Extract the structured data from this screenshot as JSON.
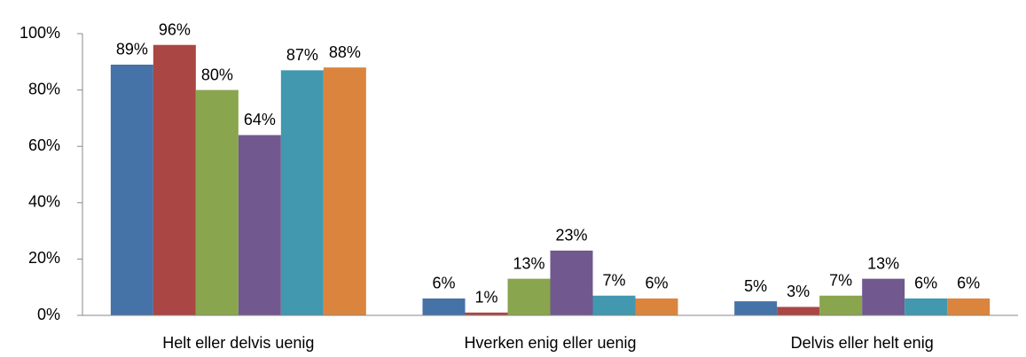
{
  "chart_data": {
    "type": "bar",
    "categories": [
      "Helt eller delvis uenig",
      "Hverken enig eller uenig",
      "Delvis eller helt enig"
    ],
    "series": [
      {
        "color": "#4572a7",
        "values": [
          89,
          6,
          5
        ],
        "value_labels": [
          "89%",
          "6%",
          "5%"
        ]
      },
      {
        "color": "#aa4643",
        "values": [
          96,
          1,
          3
        ],
        "value_labels": [
          "96%",
          "1%",
          "3%"
        ]
      },
      {
        "color": "#89a54e",
        "values": [
          80,
          13,
          7
        ],
        "value_labels": [
          "80%",
          "13%",
          "7%"
        ]
      },
      {
        "color": "#71588f",
        "values": [
          64,
          23,
          13
        ],
        "value_labels": [
          "64%",
          "23%",
          "13%"
        ]
      },
      {
        "color": "#4198af",
        "values": [
          87,
          7,
          6
        ],
        "value_labels": [
          "87%",
          "7%",
          "6%"
        ]
      },
      {
        "color": "#db843d",
        "values": [
          88,
          6,
          6
        ],
        "value_labels": [
          "88%",
          "6%",
          "6%"
        ]
      }
    ],
    "ylim": [
      0,
      100
    ],
    "yticks": [
      {
        "value": 0,
        "label": "0%"
      },
      {
        "value": 20,
        "label": "20%"
      },
      {
        "value": 40,
        "label": "40%"
      },
      {
        "value": 60,
        "label": "60%"
      },
      {
        "value": 80,
        "label": "80%"
      },
      {
        "value": 100,
        "label": "100%"
      }
    ]
  }
}
